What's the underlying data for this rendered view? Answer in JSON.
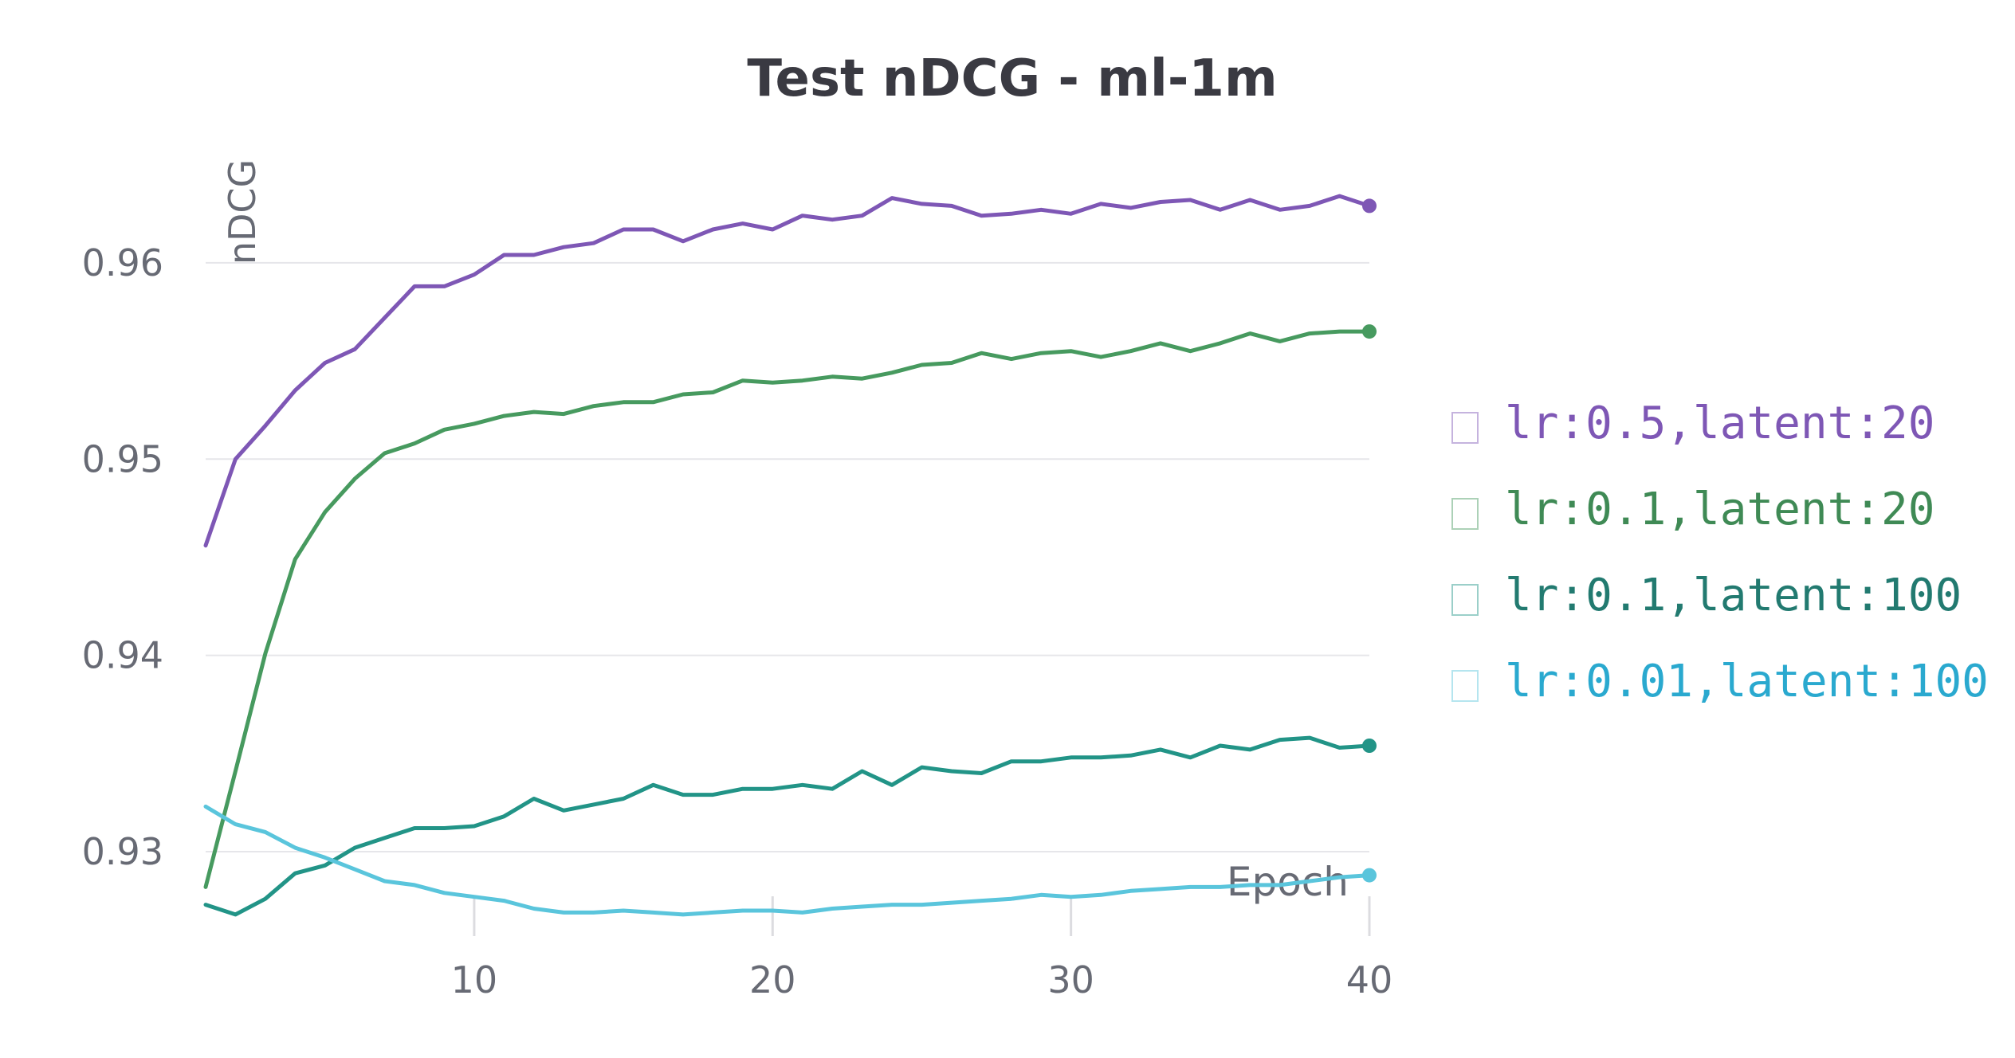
{
  "chart_data": {
    "type": "line",
    "title": "Test nDCG - ml-1m",
    "xlabel": "Epoch",
    "ylabel": "nDCG",
    "xlim": [
      1,
      40
    ],
    "ylim": [
      0.9257,
      0.9673
    ],
    "x_ticks": [
      10,
      20,
      30,
      40
    ],
    "y_ticks": [
      0.93,
      0.94,
      0.95,
      0.96
    ],
    "grid": true,
    "legend_position": "right",
    "x": [
      1,
      2,
      3,
      4,
      5,
      6,
      7,
      8,
      9,
      10,
      11,
      12,
      13,
      14,
      15,
      16,
      17,
      18,
      19,
      20,
      21,
      22,
      23,
      24,
      25,
      26,
      27,
      28,
      29,
      30,
      31,
      32,
      33,
      34,
      35,
      36,
      37,
      38,
      39,
      40
    ],
    "series": [
      {
        "name": "lr:0.5,latent:20",
        "color": "#7e57b5",
        "values": [
          0.9456,
          0.95,
          0.9517,
          0.9535,
          0.9549,
          0.9556,
          0.9572,
          0.9588,
          0.9588,
          0.9594,
          0.9604,
          0.9604,
          0.9608,
          0.961,
          0.9617,
          0.9617,
          0.9611,
          0.9617,
          0.962,
          0.9617,
          0.9624,
          0.9622,
          0.9624,
          0.9633,
          0.963,
          0.9629,
          0.9624,
          0.9625,
          0.9627,
          0.9625,
          0.963,
          0.9628,
          0.9631,
          0.9632,
          0.9627,
          0.9632,
          0.9627,
          0.9629,
          0.9634,
          0.9629
        ]
      },
      {
        "name": "lr:0.1,latent:20",
        "color": "#479a5f",
        "values": [
          0.9282,
          0.9341,
          0.9401,
          0.9449,
          0.9473,
          0.949,
          0.9503,
          0.9508,
          0.9515,
          0.9518,
          0.9522,
          0.9524,
          0.9523,
          0.9527,
          0.9529,
          0.9529,
          0.9533,
          0.9534,
          0.954,
          0.9539,
          0.954,
          0.9542,
          0.9541,
          0.9544,
          0.9548,
          0.9549,
          0.9554,
          0.9551,
          0.9554,
          0.9555,
          0.9552,
          0.9555,
          0.9559,
          0.9555,
          0.9559,
          0.9564,
          0.956,
          0.9564,
          0.9565,
          0.9565
        ]
      },
      {
        "name": "lr:0.1,latent:100",
        "color": "#229487",
        "values": [
          0.9273,
          0.9268,
          0.9276,
          0.9289,
          0.9293,
          0.9302,
          0.9307,
          0.9312,
          0.9312,
          0.9313,
          0.9318,
          0.9327,
          0.9321,
          0.9324,
          0.9327,
          0.9334,
          0.9329,
          0.9329,
          0.9332,
          0.9332,
          0.9334,
          0.9332,
          0.9341,
          0.9334,
          0.9343,
          0.9341,
          0.934,
          0.9346,
          0.9346,
          0.9348,
          0.9348,
          0.9349,
          0.9352,
          0.9348,
          0.9354,
          0.9352,
          0.9357,
          0.9358,
          0.9353,
          0.9354
        ]
      },
      {
        "name": "lr:0.01,latent:100",
        "color": "#5ac5dc",
        "values": [
          0.9323,
          0.9314,
          0.931,
          0.9302,
          0.9297,
          0.9291,
          0.9285,
          0.9283,
          0.9279,
          0.9277,
          0.9275,
          0.9271,
          0.9269,
          0.9269,
          0.927,
          0.9269,
          0.9268,
          0.9269,
          0.927,
          0.927,
          0.9269,
          0.9271,
          0.9272,
          0.9273,
          0.9273,
          0.9274,
          0.9275,
          0.9276,
          0.9278,
          0.9277,
          0.9278,
          0.928,
          0.9281,
          0.9282,
          0.9282,
          0.9283,
          0.9283,
          0.9285,
          0.9287,
          0.9288
        ]
      }
    ],
    "legend_text_colors": [
      "#7e57b5",
      "#3f8a55",
      "#227a70",
      "#2aa9cf"
    ]
  }
}
